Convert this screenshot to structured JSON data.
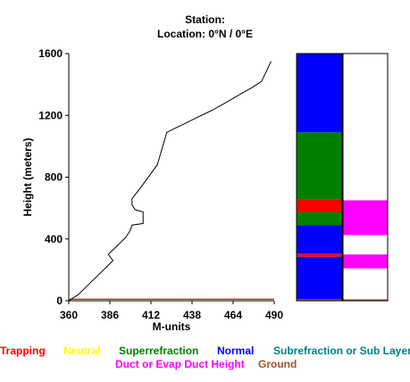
{
  "header": {
    "station": "Station:",
    "location": "Location:   0°N /   0°E"
  },
  "chart_data": {
    "type": "line",
    "xlabel": "M-units",
    "ylabel": "Height (meters)",
    "xlim": [
      360,
      490
    ],
    "ylim": [
      0,
      1600
    ],
    "xticks": [
      "360",
      "386",
      "412",
      "438",
      "464",
      "490"
    ],
    "yticks": [
      "0",
      "400",
      "800",
      "1200",
      "1600"
    ],
    "series": [
      {
        "x": [
          360,
          366,
          372,
          378,
          384,
          388,
          385,
          390,
          393,
          396,
          398,
          399,
          400,
          407,
          407,
          402,
          400,
          400,
          406,
          416,
          422,
          428,
          434,
          440,
          446,
          452,
          458,
          464,
          470,
          476,
          482,
          488
        ],
        "y": [
          0,
          40,
          100,
          160,
          220,
          260,
          300,
          350,
          380,
          410,
          440,
          460,
          490,
          500,
          575,
          590,
          620,
          660,
          740,
          880,
          1090,
          1120,
          1150,
          1180,
          1210,
          1240,
          1275,
          1310,
          1345,
          1380,
          1420,
          1550
        ]
      }
    ],
    "surface_line": {
      "y": 10,
      "color": "#a0522d"
    },
    "layer_columns": {
      "ylim": [
        0,
        1600
      ],
      "left": [
        {
          "from": 0,
          "to": 10,
          "class": "Ground"
        },
        {
          "from": 10,
          "to": 285,
          "class": "Normal"
        },
        {
          "from": 285,
          "to": 305,
          "class": "Trapping"
        },
        {
          "from": 305,
          "to": 490,
          "class": "Normal"
        },
        {
          "from": 490,
          "to": 575,
          "class": "Superrefraction"
        },
        {
          "from": 575,
          "to": 655,
          "class": "Trapping"
        },
        {
          "from": 655,
          "to": 1090,
          "class": "Superrefraction"
        },
        {
          "from": 1090,
          "to": 1600,
          "class": "Normal"
        }
      ],
      "right": [
        {
          "from": 0,
          "to": 10,
          "class": "Ground"
        },
        {
          "from": 10,
          "to": 210,
          "class": "Blank"
        },
        {
          "from": 210,
          "to": 300,
          "class": "Duct or Evap Duct Height"
        },
        {
          "from": 300,
          "to": 425,
          "class": "Blank"
        },
        {
          "from": 425,
          "to": 650,
          "class": "Duct or Evap Duct Height"
        },
        {
          "from": 650,
          "to": 1600,
          "class": "Blank"
        }
      ]
    },
    "legend": [
      {
        "label": "Trapping",
        "color": "#ff0000"
      },
      {
        "label": "Neutral",
        "color": "#ffff00"
      },
      {
        "label": "Superrefraction",
        "color": "#008000"
      },
      {
        "label": "Normal",
        "color": "#0000ff"
      },
      {
        "label": "Subrefraction or Sub Layer",
        "color": "#008080"
      },
      {
        "label": "Duct or Evap Duct Height",
        "color": "#ff00ff"
      },
      {
        "label": "Ground",
        "color": "#a0522d"
      }
    ],
    "class_colors": {
      "Trapping": "#ff0000",
      "Neutral": "#ffff00",
      "Superrefraction": "#008000",
      "Normal": "#0000ff",
      "Subrefraction or Sub Layer": "#008080",
      "Duct or Evap Duct Height": "#ff00ff",
      "Ground": "#a0522d",
      "Blank": "#ffffff"
    }
  }
}
